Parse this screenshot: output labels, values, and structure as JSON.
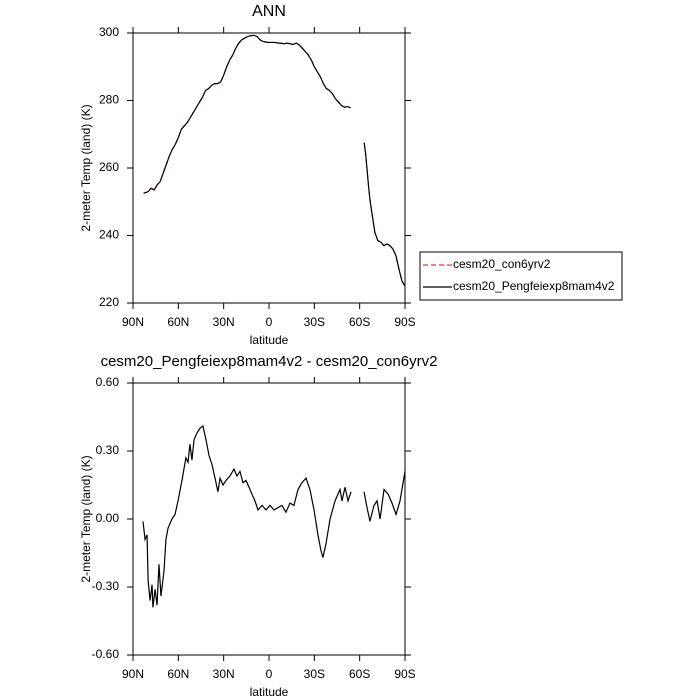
{
  "chart_data": [
    {
      "type": "line",
      "title": "ANN",
      "xlabel": "latitude",
      "ylabel": "2-meter Temp (land) (K)",
      "x": [
        83,
        80,
        78,
        76,
        74,
        72,
        70,
        68,
        66,
        64,
        62,
        60,
        58,
        56,
        54,
        52,
        50,
        48,
        46,
        44,
        42,
        40,
        38,
        36,
        34,
        32,
        30,
        28,
        26,
        24,
        22,
        20,
        18,
        16,
        14,
        12,
        10,
        8,
        6,
        4,
        2,
        0,
        -2,
        -4,
        -6,
        -8,
        -10,
        -12,
        -14,
        -16,
        -18,
        -20,
        -22,
        -24,
        -26,
        -28,
        -30,
        -32,
        -34,
        -36,
        -38,
        -40,
        -42,
        -44,
        -46,
        -48,
        -50,
        -52,
        -54,
        -58,
        -63,
        -64,
        -65,
        -66,
        -67,
        -68,
        -69,
        -70,
        -72,
        -74,
        -76,
        -78,
        -80,
        -82,
        -84,
        -86,
        -88,
        -90
      ],
      "series": [
        {
          "name": "cesm20_con6yrv2",
          "color": "#ff3030",
          "line_style": "dashed",
          "values": [
            252.5,
            253,
            254,
            253.5,
            255,
            256,
            258.5,
            261,
            263.5,
            265.5,
            267,
            269,
            271.5,
            272.5,
            273.5,
            275,
            276.5,
            278,
            279.5,
            281,
            283,
            283.5,
            284.5,
            285,
            285,
            285.5,
            287.5,
            290,
            292,
            293.5,
            295.5,
            297,
            298,
            298.5,
            299,
            299.2,
            299.3,
            299,
            298,
            297.5,
            297.3,
            297.2,
            297.2,
            297.2,
            297,
            297,
            296.8,
            297,
            296.8,
            296.6,
            297,
            296.5,
            295.5,
            294.5,
            293.5,
            292,
            290,
            288.5,
            287,
            285,
            283.5,
            283,
            282,
            280.5,
            279.5,
            278.5,
            278,
            278.2,
            277.8,
            null,
            267.5,
            264,
            259,
            254,
            250,
            247,
            244,
            241,
            238.5,
            238,
            237,
            237.5,
            237,
            236,
            234,
            230,
            226.5,
            225
          ]
        },
        {
          "name": "cesm20_Pengfeiexp8mam4v2",
          "color": "#000000",
          "line_style": "solid",
          "values": [
            252.5,
            253,
            254,
            253.5,
            255,
            256,
            258.5,
            261,
            263.5,
            265.5,
            267,
            269,
            271.5,
            272.5,
            273.5,
            275,
            276.5,
            278,
            279.5,
            281,
            283,
            283.5,
            284.5,
            285,
            285,
            285.5,
            287.5,
            290,
            292,
            293.5,
            295.5,
            297,
            298,
            298.5,
            299,
            299.2,
            299.3,
            299,
            298,
            297.5,
            297.3,
            297.2,
            297.2,
            297.2,
            297,
            297,
            296.8,
            297,
            296.8,
            296.6,
            297,
            296.5,
            295.5,
            294.5,
            293.5,
            292,
            290,
            288.5,
            287,
            285,
            283.5,
            283,
            282,
            280.5,
            279.5,
            278.5,
            278,
            278.2,
            277.8,
            null,
            267.5,
            264,
            259,
            254,
            250,
            247,
            244,
            241,
            238.5,
            238,
            237,
            237.5,
            237,
            236,
            234,
            230,
            226.5,
            225
          ]
        }
      ],
      "xlim": [
        90,
        -90
      ],
      "xticks": [
        {
          "value": 90,
          "label": "90N"
        },
        {
          "value": 60,
          "label": "60N"
        },
        {
          "value": 30,
          "label": "30N"
        },
        0,
        {
          "value": -30,
          "label": "30S"
        },
        {
          "value": -60,
          "label": "60S"
        },
        {
          "value": -90,
          "label": "90S"
        }
      ],
      "ylim": [
        220,
        300
      ],
      "yticks": [
        220,
        240,
        260,
        280,
        300
      ],
      "legend": "outside-right"
    },
    {
      "type": "line",
      "title": "cesm20_Pengfeiexp8mam4v2 - cesm20_con6yrv2",
      "xlabel": "latitude",
      "ylabel": "2-meter Temp (land) (K)",
      "x": [
        83.4,
        82,
        80.7,
        80,
        78.7,
        77.4,
        76.8,
        75.4,
        74.1,
        72.8,
        71.5,
        69.5,
        68.2,
        66.8,
        64.2,
        62.2,
        60.2,
        57.6,
        56.3,
        55,
        53.6,
        52.3,
        51,
        49.6,
        47.6,
        45.7,
        43.7,
        41.7,
        39.7,
        37.7,
        35.7,
        33.8,
        32.4,
        30.4,
        28.5,
        25.8,
        23.2,
        21.2,
        19.2,
        17.2,
        15.2,
        13.2,
        11.3,
        9.3,
        7.3,
        4.6,
        2,
        -0.6,
        -3.3,
        -5.9,
        -8.6,
        -11.2,
        -13.9,
        -16.5,
        -19.2,
        -21.8,
        -24.5,
        -27.1,
        -29.8,
        -32.4,
        -34.4,
        -35.7,
        -37.7,
        -40.4,
        -43.7,
        -47,
        -48.3,
        -50.3,
        -52.3,
        -54.3,
        -58,
        -62.9,
        -64.9,
        -66.8,
        -69.5,
        -71.5,
        -73.5,
        -76.1,
        -78.8,
        -81.4,
        -84.1,
        -86.7,
        -90
      ],
      "series": [
        {
          "name": "cesm20_Pengfeiexp8mam4v2 - cesm20_con6yrv2",
          "color": "#000000",
          "line_style": "solid",
          "values": [
            -0.01,
            -0.09,
            -0.07,
            -0.27,
            -0.36,
            -0.29,
            -0.39,
            -0.31,
            -0.38,
            -0.2,
            -0.34,
            -0.23,
            -0.09,
            -0.04,
            0,
            0.02,
            0.08,
            0.17,
            0.22,
            0.27,
            0.25,
            0.33,
            0.26,
            0.35,
            0.38,
            0.4,
            0.41,
            0.35,
            0.28,
            0.24,
            0.18,
            0.12,
            0.18,
            0.15,
            0.17,
            0.19,
            0.22,
            0.19,
            0.21,
            0.16,
            0.17,
            0.14,
            0.11,
            0.08,
            0.04,
            0.06,
            0.04,
            0.06,
            0.04,
            0.05,
            0.06,
            0.03,
            0.07,
            0.06,
            0.13,
            0.16,
            0.18,
            0.13,
            0.04,
            -0.07,
            -0.14,
            -0.17,
            -0.11,
            0,
            0.08,
            0.13,
            0.08,
            0.14,
            0.08,
            0.12,
            null,
            0.12,
            0.05,
            -0.01,
            0.06,
            0.08,
            0,
            0.13,
            0.11,
            0.07,
            0.02,
            0.08,
            0.21
          ]
        }
      ],
      "xlim": [
        90,
        -90
      ],
      "xticks": [
        {
          "value": 90,
          "label": "90N"
        },
        {
          "value": 60,
          "label": "60N"
        },
        {
          "value": 30,
          "label": "30N"
        },
        0,
        {
          "value": -30,
          "label": "30S"
        },
        {
          "value": -60,
          "label": "60S"
        },
        {
          "value": -90,
          "label": "90S"
        }
      ],
      "ylim": [
        -0.6,
        0.6
      ],
      "yticks": [
        {
          "value": -0.6,
          "label": "-0.60"
        },
        {
          "value": -0.3,
          "label": "-0.30"
        },
        {
          "value": 0,
          "label": "0.00"
        },
        {
          "value": 0.3,
          "label": "0.30"
        },
        {
          "value": 0.6,
          "label": "0.60"
        }
      ]
    }
  ]
}
